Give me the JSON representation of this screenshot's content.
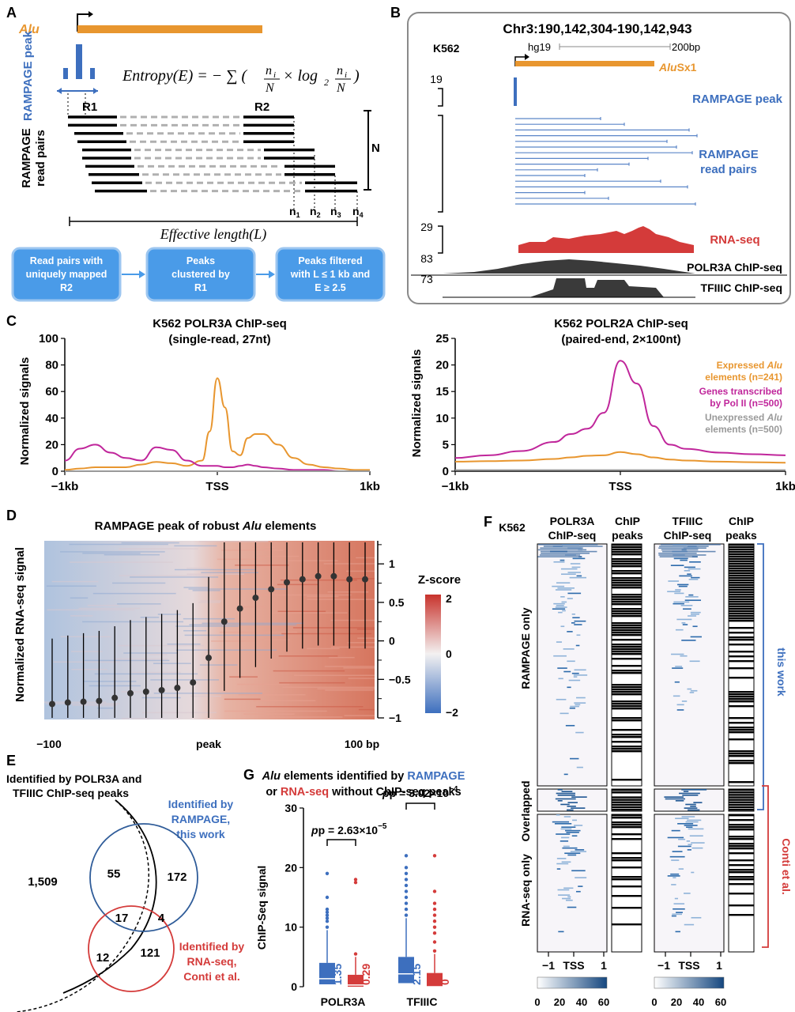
{
  "colors": {
    "alu_orange": "#E8962F",
    "rampage_blue": "#3D6FBE",
    "rnaseq_red": "#D43B3A",
    "polii_magenta": "#C0269B",
    "chip_gray": "#3A3A3A",
    "unexpressed_gray": "#9A9A9A",
    "box_blue": "#4A9BE8",
    "heat_blue": "#15477F"
  },
  "panelA": {
    "label": "A",
    "alu": "Alu",
    "rampage_peak": "RAMPAGE peak",
    "formula_lhs": "Entropy(E) = − ∑ (",
    "formula_n": "n",
    "formula_i": "i",
    "formula_N": "N",
    "formula_times": "× log",
    "formula_2": "2",
    "formula_close": ")",
    "r1": "R1",
    "r2": "R2",
    "read_pairs": "RAMPAGE read pairs",
    "N": "N",
    "n_labels": [
      "n",
      "n",
      "n",
      "n"
    ],
    "n_subs": [
      "1",
      "2",
      "3",
      "4"
    ],
    "effective_length": "Effective length(L)",
    "flow": [
      [
        "Read pairs with",
        "uniquely mapped",
        "R2"
      ],
      [
        "Peaks",
        "clustered by",
        "R1"
      ],
      [
        "Peaks filtered",
        "with L ≤ 1 kb and",
        "E ≥ 2.5"
      ]
    ]
  },
  "panelB": {
    "label": "B",
    "locus": "Chr3:190,142,304-190,142,943",
    "cell": "K562",
    "assembly": "hg19",
    "scale": "200bp",
    "alu_italic": "Alu",
    "alu_suffix": "Sx1",
    "scale_19": "19",
    "scale_29": "29",
    "scale_83": "83",
    "scale_73": "73",
    "rampage_peak": "RAMPAGE peak",
    "rampage_read_pairs_1": "RAMPAGE",
    "rampage_read_pairs_2": "read pairs",
    "rnaseq": "RNA-seq",
    "polr3a": "POLR3A ChIP-seq",
    "tfiiic": "TFIIIC ChIP-seq"
  },
  "panelC": {
    "label": "C",
    "left_title_1": "K562 POLR3A ChIP-seq",
    "left_title_2": "(single-read, 27nt)",
    "right_title_1": "K562 POLR2A ChIP-seq",
    "right_title_2": "(paired-end, 2×100nt)",
    "ylabel": "Normalized signals",
    "left_yticks": [
      "0",
      "20",
      "40",
      "60",
      "80",
      "100"
    ],
    "right_yticks": [
      "0",
      "5",
      "10",
      "15",
      "20",
      "25"
    ],
    "xticks": [
      "−1kb",
      "TSS",
      "1kb"
    ],
    "legend_expressed_1": "Expressed",
    "legend_expressed_alu": "Alu",
    "legend_expressed_2": "elements (n=241)",
    "legend_genes_1": "Genes transcribed",
    "legend_genes_2": "by Pol II (n=500)",
    "legend_unexp_1": "Unexpressed",
    "legend_unexp_alu": "Alu",
    "legend_unexp_2": "elements (n=500)"
  },
  "chart_data": [
    {
      "type": "line",
      "title": "K562 POLR3A ChIP-seq (single-read, 27nt)",
      "ylabel": "Normalized signals",
      "ylim": [
        0,
        100
      ],
      "x": [
        -1000,
        -900,
        -800,
        -700,
        -600,
        -500,
        -400,
        -300,
        -200,
        -100,
        -50,
        0,
        50,
        100,
        150,
        200,
        250,
        300,
        400,
        500,
        600,
        700,
        800,
        900,
        1000
      ],
      "series": [
        {
          "color": "#E8962F",
          "values": [
            1,
            2,
            3,
            3,
            3,
            5,
            7,
            6,
            4,
            8,
            30,
            70,
            48,
            15,
            12,
            25,
            28,
            28,
            20,
            10,
            5,
            3,
            2,
            1,
            1
          ]
        },
        {
          "color": "#C0269B",
          "values": [
            8,
            17,
            20,
            14,
            10,
            8,
            18,
            16,
            8,
            4,
            4,
            4,
            3,
            3,
            4,
            5,
            4,
            3,
            2,
            1,
            1,
            1,
            0,
            0,
            0
          ]
        },
        {
          "color": "#9A9A9A",
          "values": [
            0,
            0,
            0,
            0,
            0,
            0,
            0,
            0,
            0,
            0,
            0,
            0,
            0,
            0,
            0,
            0,
            0,
            0,
            0,
            0,
            0,
            0,
            0,
            0,
            0
          ]
        }
      ]
    },
    {
      "type": "line",
      "title": "K562 POLR2A ChIP-seq (paired-end, 2×100nt)",
      "ylabel": "Normalized signals",
      "ylim": [
        0,
        25
      ],
      "x": [
        -1000,
        -800,
        -600,
        -400,
        -300,
        -200,
        -100,
        0,
        100,
        200,
        300,
        400,
        600,
        800,
        1000
      ],
      "series": [
        {
          "name": "Expressed Alu elements (n=241)",
          "color": "#E8962F",
          "values": [
            1.8,
            1.9,
            2.0,
            2.3,
            2.6,
            2.9,
            3.0,
            3.6,
            3.2,
            2.6,
            2.2,
            2.0,
            1.8,
            1.7,
            1.6
          ]
        },
        {
          "name": "Genes transcribed by Pol II (n=500)",
          "color": "#C0269B",
          "values": [
            2.5,
            3.0,
            3.8,
            5.5,
            7.0,
            8.0,
            11.0,
            20.8,
            16.5,
            8.5,
            5.0,
            4.2,
            3.5,
            3.2,
            3.0
          ]
        },
        {
          "name": "Unexpressed Alu elements (n=500)",
          "color": "#9A9A9A",
          "values": [
            0.2,
            0.2,
            0.2,
            0.2,
            0.2,
            0.2,
            0.2,
            0.2,
            0.2,
            0.2,
            0.2,
            0.2,
            0.2,
            0.2,
            0.2
          ]
        }
      ]
    },
    {
      "type": "scatter",
      "title": "RAMPAGE peak of robust Alu elements",
      "ylabel": "Normalized RNA-seq signal",
      "ylim": [
        -1,
        1.3
      ],
      "x": [
        -100,
        -90,
        -80,
        -70,
        -60,
        -50,
        -40,
        -30,
        -20,
        -10,
        0,
        10,
        20,
        30,
        40,
        50,
        60,
        70,
        80,
        90,
        100
      ],
      "values": [
        -0.82,
        -0.8,
        -0.79,
        -0.78,
        -0.74,
        -0.68,
        -0.66,
        -0.64,
        -0.61,
        -0.54,
        -0.22,
        0.25,
        0.42,
        0.56,
        0.67,
        0.76,
        0.8,
        0.84,
        0.84,
        0.8,
        0.8
      ]
    },
    {
      "type": "bar",
      "title": "Alu elements identified by RAMPAGE or RNA-seq without ChIP-seq peaks",
      "ylabel": "ChIP-Seq signal",
      "ylim": [
        0,
        30
      ],
      "categories": [
        "POLR3A",
        "TFIIIC"
      ],
      "series": [
        {
          "name": "RAMPAGE",
          "color": "#3D6FBE",
          "medians": [
            1.35,
            2.15
          ]
        },
        {
          "name": "RNA-seq",
          "color": "#D43B3A",
          "medians": [
            0.29,
            0
          ]
        }
      ],
      "annotations": [
        "p = 2.63×10−5",
        "p = 3.02×10−4"
      ]
    }
  ],
  "panelD": {
    "label": "D",
    "title": "RAMPAGE peak of robust",
    "title_alu": "Alu",
    "title_end": "elements",
    "ylabel": "Normalized RNA-seq signal",
    "xticks": [
      "−100",
      "peak",
      "100 bp"
    ],
    "yticks": [
      "1",
      "0.5",
      "0",
      "−0.5",
      "−1"
    ],
    "zscore": "Z-score",
    "zticks": [
      "2",
      "0",
      "−2"
    ]
  },
  "panelE": {
    "label": "E",
    "chip_label_1": "Identified by POLR3A and",
    "chip_label_2": "TFIIIC ChIP-seq peaks",
    "rampage_label_1": "Identified by",
    "rampage_label_2": "RAMPAGE,",
    "rampage_label_3": "this work",
    "rnaseq_label_1": "Identified by",
    "rnaseq_label_2": "RNA-seq,",
    "rnaseq_label_3": "Conti et al.",
    "outside": "1,509",
    "n55": "55",
    "n172": "172",
    "n17": "17",
    "n4": "4",
    "n12": "12",
    "n121": "121"
  },
  "panelF": {
    "label": "F",
    "cell": "K562",
    "pol_1": "POLR3A",
    "pol_2": "ChIP-seq",
    "chip_1": "ChIP",
    "chip_2": "peaks",
    "tf_1": "TFIIIC",
    "tf_2": "ChIP-seq",
    "row_rampage": "RAMPAGE only",
    "row_overlapped": "Overlapped",
    "row_rnaseq": "RNA-seq only",
    "this_work": "this work",
    "conti": "Conti et al.",
    "xticks": [
      "−1",
      "TSS",
      "1"
    ],
    "scale_ticks": [
      "0",
      "20",
      "40",
      "60"
    ]
  },
  "panelG": {
    "label": "G",
    "title_alu": "Alu",
    "title_1": "elements identified by",
    "title_rampage": "RAMPAGE",
    "title_or": "or",
    "title_rnaseq": "RNA-seq",
    "title_2": "without ChIP-seq peaks",
    "ylabel": "ChIP-Seq signal",
    "yticks": [
      "0",
      "10",
      "20",
      "30"
    ],
    "p1": "p = 2.63×10",
    "p1_exp": "−5",
    "p2": "p = 3.02×10",
    "p2_exp": "−4",
    "med_blue_1": "1.35",
    "med_red_1": "0.29",
    "med_blue_2": "2.15",
    "med_red_2": "0",
    "cat_1": "POLR3A",
    "cat_2": "TFIIIC"
  }
}
